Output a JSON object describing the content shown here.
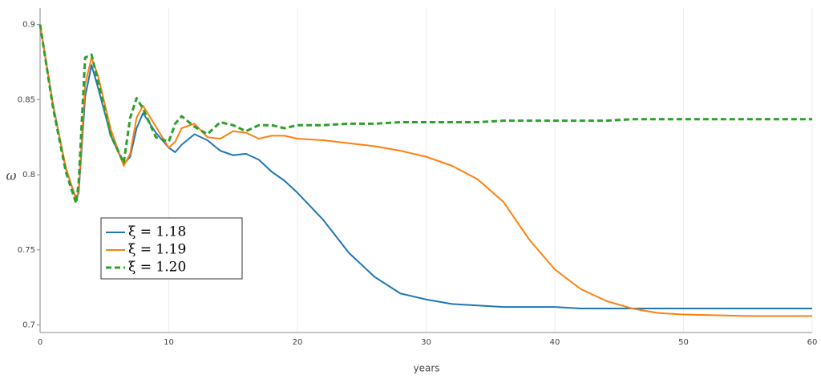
{
  "chart_data": {
    "type": "line",
    "x_label": "years",
    "y_label": "ω",
    "x": [
      0,
      1,
      2,
      2.8,
      3,
      3.5,
      4,
      4.5,
      5.5,
      6.5,
      7,
      7.5,
      8,
      9,
      10,
      10.5,
      11,
      12,
      13,
      14,
      15,
      16,
      17,
      18,
      19,
      20,
      22,
      24,
      26,
      28,
      30,
      32,
      34,
      36,
      38,
      40,
      42,
      44,
      46,
      48,
      50,
      55,
      60
    ],
    "series": [
      {
        "name": "ξ = 1.18",
        "color": "#1f77b4",
        "dash": false,
        "values": [
          0.9,
          0.847,
          0.804,
          0.784,
          0.788,
          0.852,
          0.873,
          0.858,
          0.826,
          0.807,
          0.812,
          0.831,
          0.841,
          0.828,
          0.818,
          0.815,
          0.82,
          0.827,
          0.823,
          0.816,
          0.813,
          0.814,
          0.81,
          0.802,
          0.796,
          0.788,
          0.77,
          0.748,
          0.732,
          0.721,
          0.717,
          0.714,
          0.713,
          0.712,
          0.712,
          0.712,
          0.711,
          0.711,
          0.711,
          0.711,
          0.711,
          0.711,
          0.711
        ]
      },
      {
        "name": "ξ = 1.19",
        "color": "#ff7f0e",
        "dash": false,
        "values": [
          0.9,
          0.846,
          0.805,
          0.783,
          0.79,
          0.86,
          0.878,
          0.866,
          0.83,
          0.806,
          0.814,
          0.838,
          0.846,
          0.832,
          0.818,
          0.822,
          0.831,
          0.834,
          0.825,
          0.824,
          0.829,
          0.828,
          0.824,
          0.826,
          0.826,
          0.824,
          0.823,
          0.821,
          0.819,
          0.816,
          0.812,
          0.806,
          0.797,
          0.782,
          0.757,
          0.737,
          0.724,
          0.716,
          0.711,
          0.708,
          0.707,
          0.706,
          0.706
        ]
      },
      {
        "name": "ξ = 1.20",
        "color": "#2ca02c",
        "dash": true,
        "values": [
          0.9,
          0.845,
          0.802,
          0.781,
          0.795,
          0.878,
          0.88,
          0.862,
          0.826,
          0.808,
          0.838,
          0.851,
          0.844,
          0.825,
          0.822,
          0.834,
          0.839,
          0.832,
          0.827,
          0.835,
          0.833,
          0.829,
          0.833,
          0.833,
          0.831,
          0.833,
          0.833,
          0.834,
          0.834,
          0.835,
          0.835,
          0.835,
          0.835,
          0.836,
          0.836,
          0.836,
          0.836,
          0.836,
          0.837,
          0.837,
          0.837,
          0.837,
          0.837
        ]
      }
    ],
    "xlim": [
      0,
      60
    ],
    "xticks": [
      0,
      10,
      20,
      30,
      40,
      50,
      60
    ],
    "ylim": [
      0.695,
      0.911
    ],
    "yticks": [
      0.7,
      0.75,
      0.8,
      0.85,
      0.9
    ],
    "grid": true
  }
}
